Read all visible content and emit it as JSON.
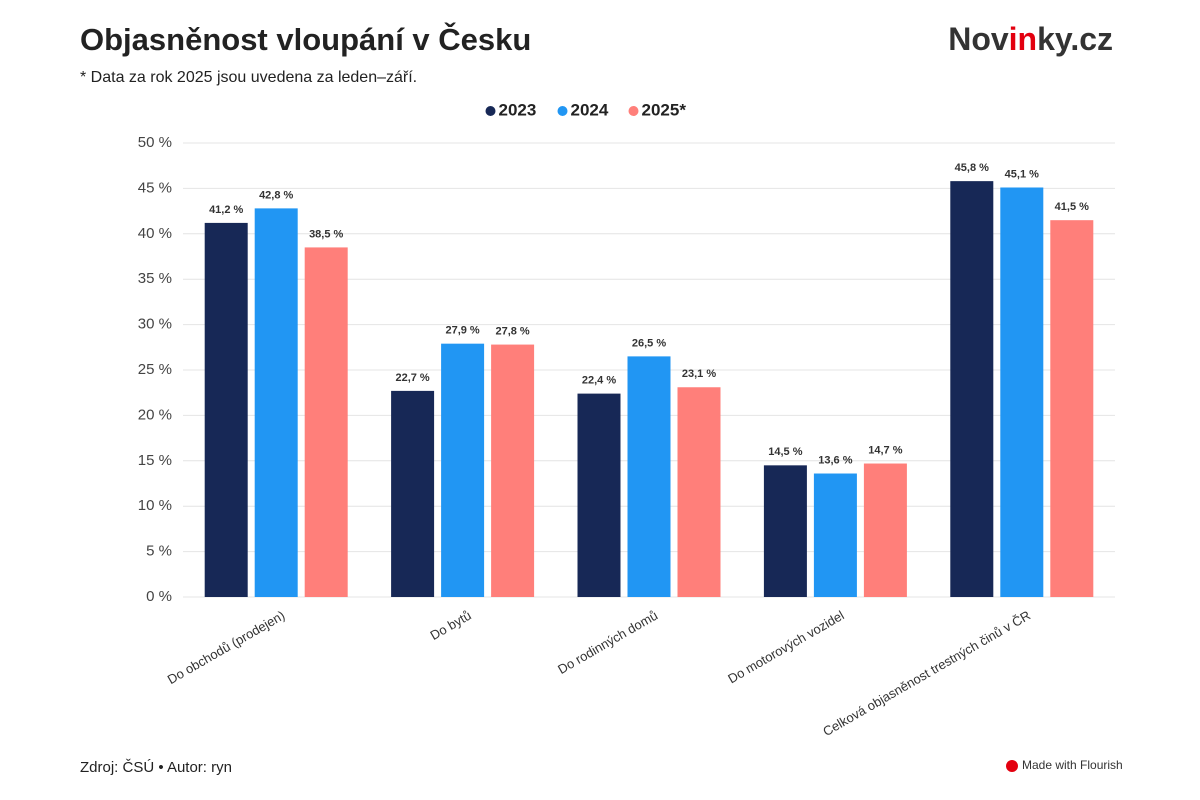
{
  "chart_data": {
    "type": "bar",
    "title": "Objasněnost vloupání v Česku",
    "subtitle": "* Data za rok 2025 jsou uvedena za leden–září.",
    "brand": [
      "Nov",
      "in",
      "ky.cz"
    ],
    "source": "Zdroj: ČSÚ • Autor: ryn",
    "credit": "Made with Flourish",
    "categories": [
      "Do obchodů (prodejen)",
      "Do bytů",
      "Do rodinných domů",
      "Do motorových vozidel",
      "Celková objasněnost trestných činů v ČR"
    ],
    "series": [
      {
        "name": "2023",
        "color": "#172856",
        "values": [
          41.2,
          22.7,
          22.4,
          14.5,
          45.8
        ],
        "value_labels": [
          "41,2 %",
          "22,7 %",
          "22,4 %",
          "14,5 %",
          "45,8 %"
        ]
      },
      {
        "name": "2024",
        "color": "#2196f3",
        "values": [
          42.8,
          27.9,
          26.5,
          13.6,
          45.1
        ],
        "value_labels": [
          "42,8 %",
          "27,9 %",
          "26,5 %",
          "13,6 %",
          "45,1 %"
        ]
      },
      {
        "name": "2025*",
        "color": "#ff7f7a",
        "values": [
          38.5,
          27.8,
          23.1,
          14.7,
          41.5
        ],
        "value_labels": [
          "38,5 %",
          "27,8 %",
          "23,1 %",
          "14,7 %",
          "41,5 %"
        ]
      }
    ],
    "ylim": [
      0,
      50
    ],
    "yticks": [
      {
        "value": 0,
        "label": "0 %"
      },
      {
        "value": 5,
        "label": "5 %"
      },
      {
        "value": 10,
        "label": "10 %"
      },
      {
        "value": 15,
        "label": "15 %"
      },
      {
        "value": 20,
        "label": "20 %"
      },
      {
        "value": 25,
        "label": "25 %"
      },
      {
        "value": 30,
        "label": "30 %"
      },
      {
        "value": 35,
        "label": "35 %"
      },
      {
        "value": 40,
        "label": "40 %"
      },
      {
        "value": 45,
        "label": "45 %"
      },
      {
        "value": 50,
        "label": "50 %"
      }
    ],
    "grid": true,
    "legend": "top"
  }
}
